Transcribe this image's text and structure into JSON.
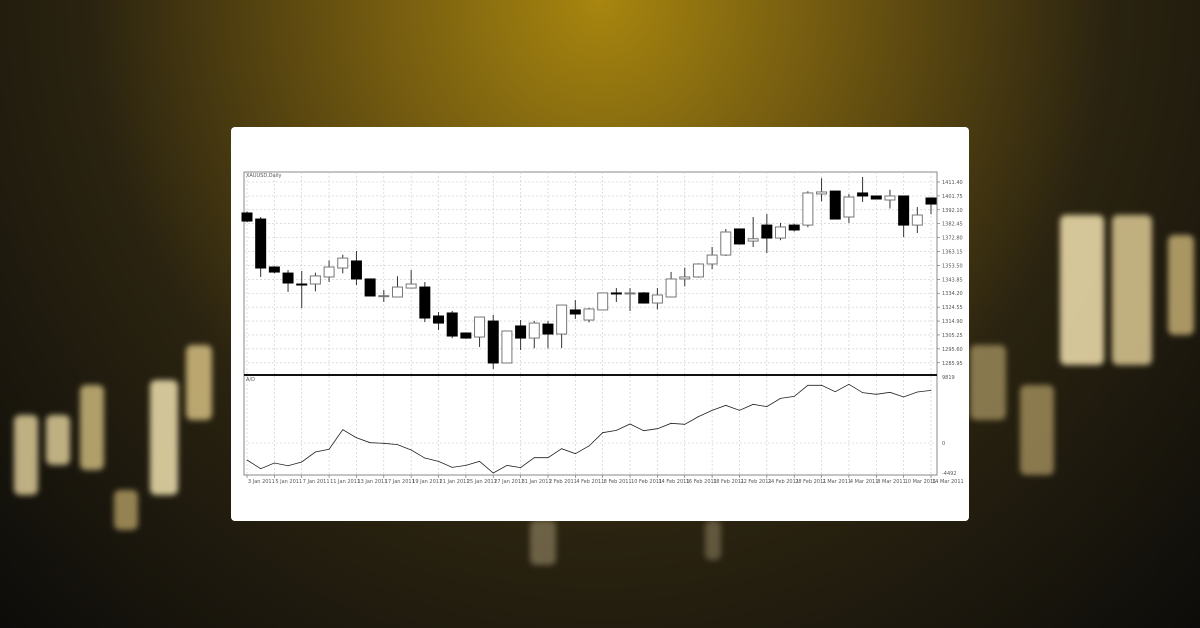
{
  "colors": {
    "bull": "#ffffff",
    "bear": "#000000",
    "grid": "#c8c8c8",
    "accent": "#c9a227"
  },
  "chart_data": {
    "type": "candlestick",
    "title": "XAUUSD,Daily",
    "grid": true,
    "price_axis": {
      "ticks": [
        "1411.40",
        "1401.75",
        "1392.10",
        "1382.45",
        "1372.80",
        "1363.15",
        "1353.50",
        "1343.85",
        "1334.20",
        "1324.55",
        "1314.90",
        "1305.25",
        "1295.60",
        "1285.95"
      ],
      "ylim": [
        1280,
        1416
      ]
    },
    "x_tick_labels": [
      "3 Jan 2011",
      "5 Jan 2011",
      "7 Jan 2011",
      "11 Jan 2011",
      "13 Jan 2011",
      "17 Jan 2011",
      "19 Jan 2011",
      "21 Jan 2011",
      "25 Jan 2011",
      "27 Jan 2011",
      "31 Jan 2011",
      "2 Feb 2011",
      "4 Feb 2011",
      "8 Feb 2011",
      "10 Feb 2011",
      "14 Feb 2011",
      "16 Feb 2011",
      "18 Feb 2011",
      "22 Feb 2011",
      "24 Feb 2011",
      "28 Feb 2011",
      "2 Mar 2011",
      "4 Mar 2011",
      "8 Mar 2011",
      "10 Mar 2011",
      "14 Mar 2011"
    ],
    "ohlc": [
      [
        1389.9,
        1391,
        1383.5,
        1384.3
      ],
      [
        1385.7,
        1387.1,
        1345.5,
        1351.7
      ],
      [
        1352.4,
        1353,
        1348,
        1348.9
      ],
      [
        1348.2,
        1350.3,
        1335.1,
        1341.3
      ],
      [
        1340.6,
        1349.6,
        1323.9,
        1340.0
      ],
      [
        1340.6,
        1348.5,
        1335.5,
        1346.2
      ],
      [
        1345.5,
        1357,
        1342,
        1352.4
      ],
      [
        1351.7,
        1361,
        1348,
        1358.6
      ],
      [
        1356.6,
        1363.5,
        1339.9,
        1344.1
      ],
      [
        1344.1,
        1344.5,
        1332,
        1332.3
      ],
      [
        1332.3,
        1336.4,
        1328.1,
        1332.5
      ],
      [
        1331.6,
        1346,
        1331.6,
        1338.5
      ],
      [
        1337.8,
        1350.3,
        1337.8,
        1340.6
      ],
      [
        1338.5,
        1342.0,
        1314.2,
        1317.0
      ],
      [
        1318.4,
        1321.2,
        1308.7,
        1313.5
      ],
      [
        1320.5,
        1321.9,
        1303,
        1304.5
      ],
      [
        1306.6,
        1307,
        1302.5,
        1303.1
      ],
      [
        1303.8,
        1317.7,
        1296.9,
        1317.7
      ],
      [
        1314.9,
        1319.1,
        1281.6,
        1285.8
      ],
      [
        1285.8,
        1308.0,
        1285.8,
        1308.0
      ],
      [
        1311.5,
        1315.6,
        1294.8,
        1303.1
      ],
      [
        1303.1,
        1315,
        1296,
        1313.5
      ],
      [
        1312.8,
        1315,
        1296,
        1305.9
      ],
      [
        1305.9,
        1326.0,
        1296.2,
        1326.0
      ],
      [
        1322.6,
        1329.5,
        1316.3,
        1319.8
      ],
      [
        1315.6,
        1324,
        1314,
        1323.3
      ],
      [
        1322.6,
        1334.4,
        1322.6,
        1334.4
      ],
      [
        1334.4,
        1337.8,
        1328.1,
        1334.0
      ],
      [
        1334.2,
        1337.8,
        1321.9,
        1334.4
      ],
      [
        1334.4,
        1335,
        1327,
        1327.4
      ],
      [
        1327.4,
        1337.8,
        1323,
        1333.0
      ],
      [
        1331.6,
        1349,
        1331.6,
        1344.1
      ],
      [
        1344.1,
        1352,
        1339,
        1345.5
      ],
      [
        1345.5,
        1355,
        1345,
        1354.5
      ],
      [
        1354.5,
        1366.3,
        1351,
        1360.7
      ],
      [
        1360.7,
        1378.8,
        1360,
        1376.7
      ],
      [
        1378.8,
        1379,
        1368,
        1368.4
      ],
      [
        1370.4,
        1387.1,
        1366.3,
        1372.0
      ],
      [
        1381.5,
        1389.2,
        1362.1,
        1372.5
      ],
      [
        1372.5,
        1383,
        1371,
        1380.2
      ],
      [
        1381.5,
        1382.5,
        1377,
        1378.1
      ],
      [
        1381.5,
        1405,
        1380,
        1403.8
      ],
      [
        1403.1,
        1414,
        1398,
        1404.5
      ],
      [
        1405.1,
        1405.1,
        1385.7,
        1385.7
      ],
      [
        1387.1,
        1403,
        1383,
        1401.0
      ],
      [
        1403.8,
        1414.9,
        1397.5,
        1401.7
      ],
      [
        1401.7,
        1401.7,
        1399.6,
        1399.6
      ],
      [
        1398.9,
        1406,
        1393,
        1401.7
      ],
      [
        1401.7,
        1401.7,
        1373.2,
        1381.5
      ],
      [
        1381.5,
        1394,
        1376,
        1388.5
      ],
      [
        1400.3,
        1400.3,
        1389,
        1396.1
      ]
    ],
    "indicator": {
      "label": "A/D",
      "ticks": [
        "9819",
        "0",
        "-4492"
      ],
      "ylim": [
        -4800,
        9900
      ],
      "values": [
        -2567,
        -3880,
        -3020,
        -3430,
        -2870,
        -1360,
        -950,
        2010,
        800,
        50,
        -50,
        -250,
        -1060,
        -2270,
        -2770,
        -3680,
        -3380,
        -2770,
        -4530,
        -3380,
        -3720,
        -2220,
        -2220,
        -860,
        -1610,
        -450,
        1560,
        1910,
        2870,
        1860,
        2160,
        2970,
        2820,
        3980,
        4930,
        5690,
        4930,
        5840,
        5490,
        6740,
        7040,
        8710,
        8710,
        7750,
        8860,
        7600,
        7350,
        7650,
        6950,
        7700,
        7950
      ]
    }
  }
}
